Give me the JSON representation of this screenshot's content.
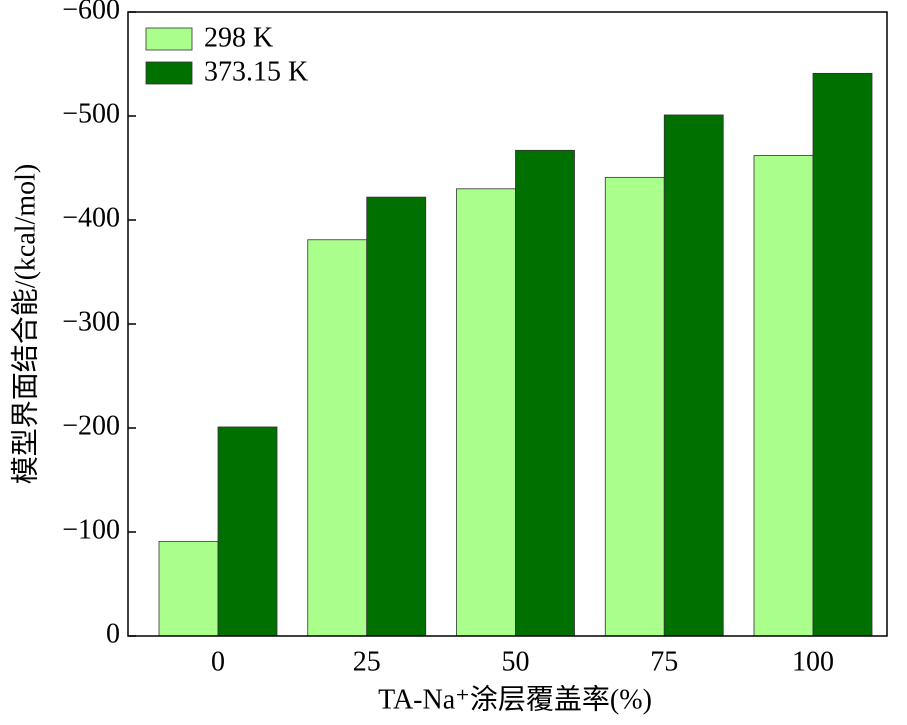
{
  "chart_data": {
    "type": "bar",
    "x_label": "TA-Na⁺涂层覆盖率(%)",
    "y_label": "模型界面结合能/(kcal/mol)",
    "categories": [
      "0",
      "25",
      "50",
      "75",
      "100"
    ],
    "series": [
      {
        "name": "298 K",
        "color": "#aaff8c",
        "values": [
          -91,
          -381,
          -430,
          -441,
          -462
        ]
      },
      {
        "name": "373.15 K",
        "color": "#007000",
        "values": [
          -201,
          -422,
          -467,
          -501,
          -541
        ]
      }
    ],
    "ylim": [
      0,
      -600
    ],
    "yticks": [
      0,
      {
        "value": -100,
        "label": "−100"
      },
      {
        "value": -200,
        "label": "−200"
      },
      {
        "value": -300,
        "label": "−300"
      },
      {
        "value": -400,
        "label": "−400"
      },
      {
        "value": -500,
        "label": "−500"
      },
      {
        "value": -600,
        "label": "−600"
      }
    ],
    "legend": "upper-left"
  }
}
